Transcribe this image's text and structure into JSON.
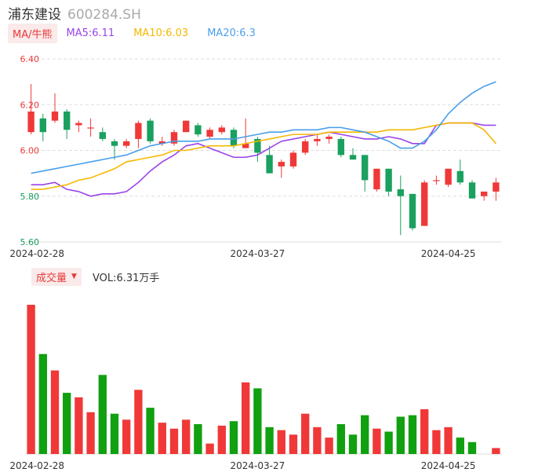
{
  "header": {
    "name": "浦东建设",
    "code": "600284.SH"
  },
  "legend": {
    "ma_tag": "MA/牛熊",
    "items": [
      {
        "label": "MA5:6.11",
        "color": "#9b44e8"
      },
      {
        "label": "MA10:6.03",
        "color": "#f5b800"
      },
      {
        "label": "MA20:6.3",
        "color": "#4a9ee8"
      }
    ]
  },
  "volume_header": {
    "tag": "成交量",
    "text": "VOL:6.31万手"
  },
  "colors": {
    "up": "#f03838",
    "down": "#1aa05f",
    "vol_up": "#f03838",
    "vol_down": "#10a010",
    "grid": "#dddddd"
  },
  "chart_data": {
    "type": "candlestick",
    "price_axis": {
      "ylim": [
        5.6,
        6.4
      ],
      "ticks": [
        "6.40",
        "6.20",
        "6.00",
        "5.80",
        "5.60"
      ]
    },
    "x_tick_labels": [
      "2024-02-28",
      "2024-03-27",
      "2024-04-25"
    ],
    "x_tick_index": [
      0.5,
      19,
      35
    ],
    "candles": [
      {
        "o": 6.08,
        "h": 6.29,
        "l": 6.07,
        "c": 6.17
      },
      {
        "o": 6.14,
        "h": 6.16,
        "l": 6.04,
        "c": 6.08
      },
      {
        "o": 6.13,
        "h": 6.25,
        "l": 6.12,
        "c": 6.17
      },
      {
        "o": 6.17,
        "h": 6.18,
        "l": 6.05,
        "c": 6.09
      },
      {
        "o": 6.11,
        "h": 6.13,
        "l": 6.08,
        "c": 6.12
      },
      {
        "o": 6.1,
        "h": 6.14,
        "l": 6.06,
        "c": 6.1
      },
      {
        "o": 6.08,
        "h": 6.1,
        "l": 6.04,
        "c": 6.05
      },
      {
        "o": 6.04,
        "h": 6.05,
        "l": 5.96,
        "c": 6.02
      },
      {
        "o": 6.02,
        "h": 6.05,
        "l": 6.01,
        "c": 6.04
      },
      {
        "o": 6.05,
        "h": 6.13,
        "l": 6.01,
        "c": 6.12
      },
      {
        "o": 6.13,
        "h": 6.14,
        "l": 6.03,
        "c": 6.04
      },
      {
        "o": 6.03,
        "h": 6.06,
        "l": 6.02,
        "c": 6.04
      },
      {
        "o": 6.03,
        "h": 6.09,
        "l": 6.02,
        "c": 6.08
      },
      {
        "o": 6.08,
        "h": 6.13,
        "l": 6.08,
        "c": 6.13
      },
      {
        "o": 6.11,
        "h": 6.12,
        "l": 6.06,
        "c": 6.07
      },
      {
        "o": 6.06,
        "h": 6.1,
        "l": 6.05,
        "c": 6.09
      },
      {
        "o": 6.08,
        "h": 6.11,
        "l": 6.07,
        "c": 6.1
      },
      {
        "o": 6.09,
        "h": 6.1,
        "l": 6.01,
        "c": 6.02
      },
      {
        "o": 6.01,
        "h": 6.14,
        "l": 6.01,
        "c": 6.03
      },
      {
        "o": 6.05,
        "h": 6.06,
        "l": 5.95,
        "c": 5.99
      },
      {
        "o": 5.98,
        "h": 6.02,
        "l": 5.9,
        "c": 5.9
      },
      {
        "o": 5.93,
        "h": 5.96,
        "l": 5.88,
        "c": 5.95
      },
      {
        "o": 5.93,
        "h": 6.0,
        "l": 5.92,
        "c": 5.99
      },
      {
        "o": 5.99,
        "h": 6.05,
        "l": 5.98,
        "c": 6.04
      },
      {
        "o": 6.04,
        "h": 6.07,
        "l": 6.02,
        "c": 6.05
      },
      {
        "o": 6.05,
        "h": 6.07,
        "l": 6.03,
        "c": 6.06
      },
      {
        "o": 6.05,
        "h": 6.06,
        "l": 5.97,
        "c": 5.98
      },
      {
        "o": 5.98,
        "h": 6.01,
        "l": 5.96,
        "c": 5.96
      },
      {
        "o": 5.98,
        "h": 5.98,
        "l": 5.82,
        "c": 5.87
      },
      {
        "o": 5.83,
        "h": 5.92,
        "l": 5.82,
        "c": 5.92
      },
      {
        "o": 5.92,
        "h": 5.92,
        "l": 5.8,
        "c": 5.82
      },
      {
        "o": 5.83,
        "h": 5.89,
        "l": 5.63,
        "c": 5.8
      },
      {
        "o": 5.81,
        "h": 5.81,
        "l": 5.65,
        "c": 5.66
      },
      {
        "o": 5.67,
        "h": 5.87,
        "l": 5.67,
        "c": 5.86
      },
      {
        "o": 5.87,
        "h": 5.89,
        "l": 5.85,
        "c": 5.87
      },
      {
        "o": 5.85,
        "h": 5.92,
        "l": 5.84,
        "c": 5.92
      },
      {
        "o": 5.91,
        "h": 5.96,
        "l": 5.85,
        "c": 5.86
      },
      {
        "o": 5.86,
        "h": 5.87,
        "l": 5.79,
        "c": 5.79
      },
      {
        "o": 5.8,
        "h": 5.82,
        "l": 5.78,
        "c": 5.82
      },
      {
        "o": 5.82,
        "h": 5.88,
        "l": 5.78,
        "c": 5.86
      }
    ],
    "ma5": [
      5.85,
      5.85,
      5.86,
      5.83,
      5.82,
      5.8,
      5.81,
      5.81,
      5.82,
      5.86,
      5.91,
      5.95,
      5.98,
      6.02,
      6.03,
      6.01,
      5.99,
      5.97,
      5.97,
      5.98,
      6.01,
      6.04,
      6.05,
      6.06,
      6.07,
      6.08,
      6.07,
      6.06,
      6.05,
      6.05,
      6.06,
      6.05,
      6.03,
      6.03,
      6.11,
      6.12,
      6.12,
      6.12,
      6.11,
      6.11
    ],
    "ma10": [
      5.83,
      5.83,
      5.84,
      5.85,
      5.87,
      5.88,
      5.9,
      5.92,
      5.95,
      5.96,
      5.97,
      5.98,
      6.0,
      6.0,
      6.01,
      6.02,
      6.02,
      6.02,
      6.03,
      6.04,
      6.05,
      6.06,
      6.07,
      6.07,
      6.07,
      6.08,
      6.08,
      6.08,
      6.08,
      6.08,
      6.09,
      6.09,
      6.09,
      6.1,
      6.11,
      6.12,
      6.12,
      6.12,
      6.09,
      6.03
    ],
    "ma20": [
      5.9,
      5.91,
      5.92,
      5.93,
      5.94,
      5.95,
      5.96,
      5.97,
      5.98,
      6.0,
      6.02,
      6.03,
      6.04,
      6.04,
      6.04,
      6.05,
      6.05,
      6.05,
      6.06,
      6.07,
      6.08,
      6.08,
      6.09,
      6.09,
      6.09,
      6.1,
      6.1,
      6.09,
      6.08,
      6.06,
      6.04,
      6.01,
      6.01,
      6.04,
      6.09,
      6.16,
      6.21,
      6.25,
      6.28,
      6.3
    ],
    "volumes": [
      100,
      67,
      56,
      41,
      38,
      28,
      53,
      27,
      23,
      43,
      31,
      21,
      17,
      23,
      20,
      7,
      19,
      22,
      48,
      44,
      18,
      16,
      13,
      27,
      18,
      11,
      20,
      13,
      26,
      17,
      15,
      25,
      26,
      30,
      16,
      18,
      11,
      8,
      0,
      4
    ]
  }
}
